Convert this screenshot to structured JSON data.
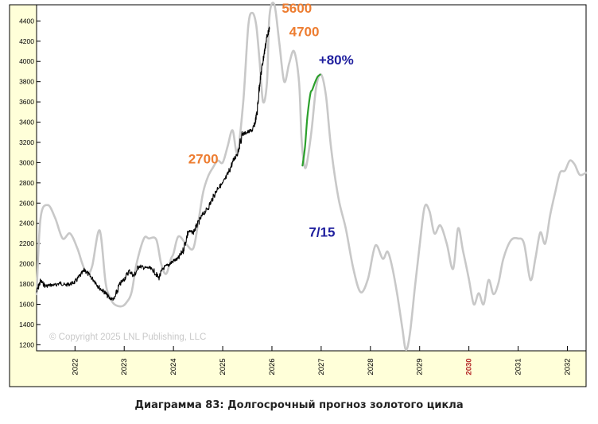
{
  "caption": "Диаграмма 83: Долгосрочный прогноз золотого цикла",
  "chart_data": {
    "type": "line",
    "x_tick_labels": [
      "2022",
      "2023",
      "2024",
      "2025",
      "2026",
      "2027",
      "2028",
      "2029",
      "2030",
      "2031",
      "2032"
    ],
    "x_tick_years": [
      2022,
      2023,
      2024,
      2025,
      2026,
      2027,
      2028,
      2029,
      2030,
      2031,
      2032
    ],
    "highlight_tick": "2030",
    "xlim": [
      2021.22,
      2032.38
    ],
    "ylim": [
      1140,
      4560
    ],
    "y_ticks": [
      1200,
      1400,
      1600,
      1800,
      2000,
      2200,
      2400,
      2600,
      2800,
      3000,
      3200,
      3400,
      3600,
      3800,
      4000,
      4200,
      4400
    ],
    "grid": false,
    "watermark": "© Copyright 2025 LNL Publishing, LLC",
    "annotations": [
      {
        "text": "5600",
        "x": 2026.2,
        "y": 4480,
        "color": "#ed7d31"
      },
      {
        "text": "4700",
        "x": 2026.35,
        "y": 4250,
        "color": "#ed7d31"
      },
      {
        "text": "+80%",
        "x": 2026.95,
        "y": 3970,
        "color": "#1f1f9e"
      },
      {
        "text": "2700",
        "x": 2024.3,
        "y": 2990,
        "color": "#ed7d31"
      },
      {
        "text": "7/15",
        "x": 2026.75,
        "y": 2270,
        "color": "#1f1f9e"
      }
    ],
    "series": [
      {
        "style": "cycle-forecast",
        "color": "#c8c8c8",
        "x": [
          2021.22,
          2021.3,
          2021.45,
          2021.6,
          2021.75,
          2021.9,
          2022.05,
          2022.15,
          2022.25,
          2022.35,
          2022.5,
          2022.62,
          2022.7,
          2022.8,
          2022.95,
          2023.05,
          2023.15,
          2023.25,
          2023.4,
          2023.5,
          2023.65,
          2023.75,
          2023.85,
          2023.95,
          2024.0,
          2024.1,
          2024.25,
          2024.4,
          2024.5,
          2024.6,
          2024.7,
          2024.8,
          2024.9,
          2025.0,
          2025.1,
          2025.2,
          2025.3,
          2025.42,
          2025.52,
          2025.6,
          2025.68,
          2025.75,
          2025.82,
          2025.9,
          2025.95,
          2026.05,
          2026.15,
          2026.25,
          2026.35,
          2026.45,
          2026.55,
          2026.6,
          2026.65,
          2026.7,
          2026.8,
          2026.9,
          2027.0,
          2027.1,
          2027.2,
          2027.35,
          2027.5,
          2027.65,
          2027.8,
          2027.95,
          2028.1,
          2028.25,
          2028.35,
          2028.45,
          2028.55,
          2028.65,
          2028.72,
          2028.8,
          2028.9,
          2029.0,
          2029.1,
          2029.2,
          2029.3,
          2029.42,
          2029.55,
          2029.68,
          2029.78,
          2029.88,
          2030.0,
          2030.1,
          2030.2,
          2030.3,
          2030.4,
          2030.5,
          2030.6,
          2030.7,
          2030.85,
          2031.0,
          2031.12,
          2031.25,
          2031.35,
          2031.45,
          2031.55,
          2031.65,
          2031.75,
          2031.85,
          2031.95,
          2032.05,
          2032.15,
          2032.25,
          2032.38
        ],
        "y": [
          1700,
          2450,
          2580,
          2450,
          2250,
          2300,
          2150,
          2000,
          1900,
          1980,
          2330,
          1820,
          1680,
          1600,
          1580,
          1620,
          1720,
          2000,
          2250,
          2250,
          2240,
          2000,
          1900,
          2050,
          2100,
          2270,
          2200,
          2150,
          2400,
          2700,
          2860,
          2950,
          3020,
          3000,
          3160,
          3320,
          3100,
          3620,
          4350,
          4480,
          4360,
          4000,
          3600,
          3800,
          4450,
          4560,
          4180,
          3800,
          3980,
          4100,
          3800,
          3250,
          3000,
          2970,
          3300,
          3750,
          3870,
          3650,
          3150,
          2650,
          2350,
          1960,
          1720,
          1850,
          2180,
          2050,
          2120,
          1950,
          1680,
          1360,
          1150,
          1300,
          1750,
          2180,
          2560,
          2520,
          2300,
          2380,
          2200,
          1950,
          2350,
          2130,
          1850,
          1600,
          1710,
          1600,
          1840,
          1700,
          1810,
          2050,
          2230,
          2250,
          2200,
          1840,
          2050,
          2310,
          2200,
          2480,
          2700,
          2900,
          2920,
          3020,
          2980,
          2880,
          2900
        ]
      },
      {
        "style": "price-history",
        "color": "#000000",
        "x": [
          2021.22,
          2021.3,
          2021.4,
          2021.5,
          2021.6,
          2021.7,
          2021.8,
          2021.9,
          2022.0,
          2022.1,
          2022.2,
          2022.3,
          2022.4,
          2022.5,
          2022.6,
          2022.7,
          2022.8,
          2022.9,
          2023.0,
          2023.1,
          2023.2,
          2023.3,
          2023.4,
          2023.5,
          2023.6,
          2023.7,
          2023.8,
          2023.9,
          2024.0,
          2024.1,
          2024.2,
          2024.3,
          2024.4,
          2024.5,
          2024.6,
          2024.7,
          2024.8,
          2024.9,
          2025.0,
          2025.1,
          2025.2,
          2025.3,
          2025.4,
          2025.5,
          2025.6,
          2025.65,
          2025.7,
          2025.75,
          2025.8,
          2025.85,
          2025.9,
          2025.95
        ],
        "y": [
          1720,
          1830,
          1780,
          1790,
          1790,
          1810,
          1790,
          1800,
          1820,
          1880,
          1940,
          1880,
          1830,
          1760,
          1720,
          1660,
          1650,
          1790,
          1850,
          1930,
          1880,
          1980,
          1960,
          1960,
          1930,
          1860,
          1960,
          1990,
          2030,
          2050,
          2140,
          2320,
          2310,
          2400,
          2490,
          2550,
          2650,
          2750,
          2790,
          2880,
          3000,
          3100,
          3280,
          3300,
          3320,
          3380,
          3500,
          3780,
          3950,
          4100,
          4250,
          4320
        ]
      },
      {
        "style": "forecast-rally",
        "color": "#2ca02c",
        "x": [
          2026.62,
          2026.67,
          2026.72,
          2026.78,
          2026.82,
          2026.88,
          2026.93,
          2026.98
        ],
        "y": [
          2970,
          3150,
          3450,
          3680,
          3720,
          3800,
          3850,
          3870
        ]
      }
    ]
  }
}
